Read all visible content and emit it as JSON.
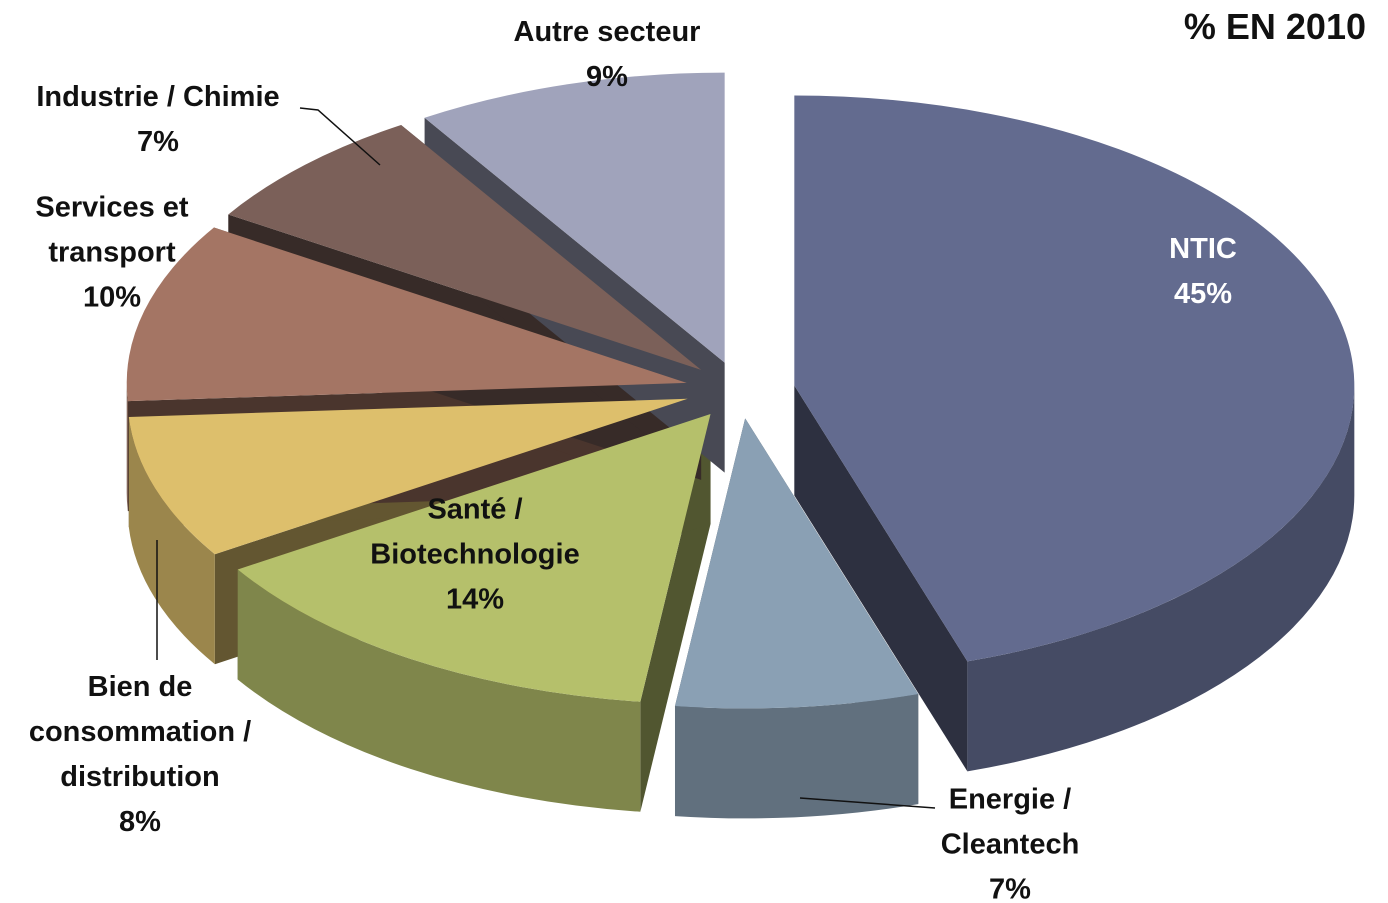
{
  "chart_data": {
    "type": "pie",
    "title": "% EN 2010",
    "categories": [
      "NTIC",
      "Energie / Cleantech",
      "Santé / Biotechnologie",
      "Bien de consommation / distribution",
      "Services et transport",
      "Industrie / Chimie",
      "Autre secteur"
    ],
    "values": [
      45,
      7,
      14,
      8,
      10,
      7,
      9
    ],
    "value_labels": [
      "45%",
      "7%",
      "14%",
      "8%",
      "10%",
      "7%",
      "9%"
    ],
    "colors": [
      "#636b8f",
      "#8aa0b4",
      "#b5c06b",
      "#ddbf6c",
      "#a47564",
      "#7b6059",
      "#a0a3bb"
    ]
  }
}
